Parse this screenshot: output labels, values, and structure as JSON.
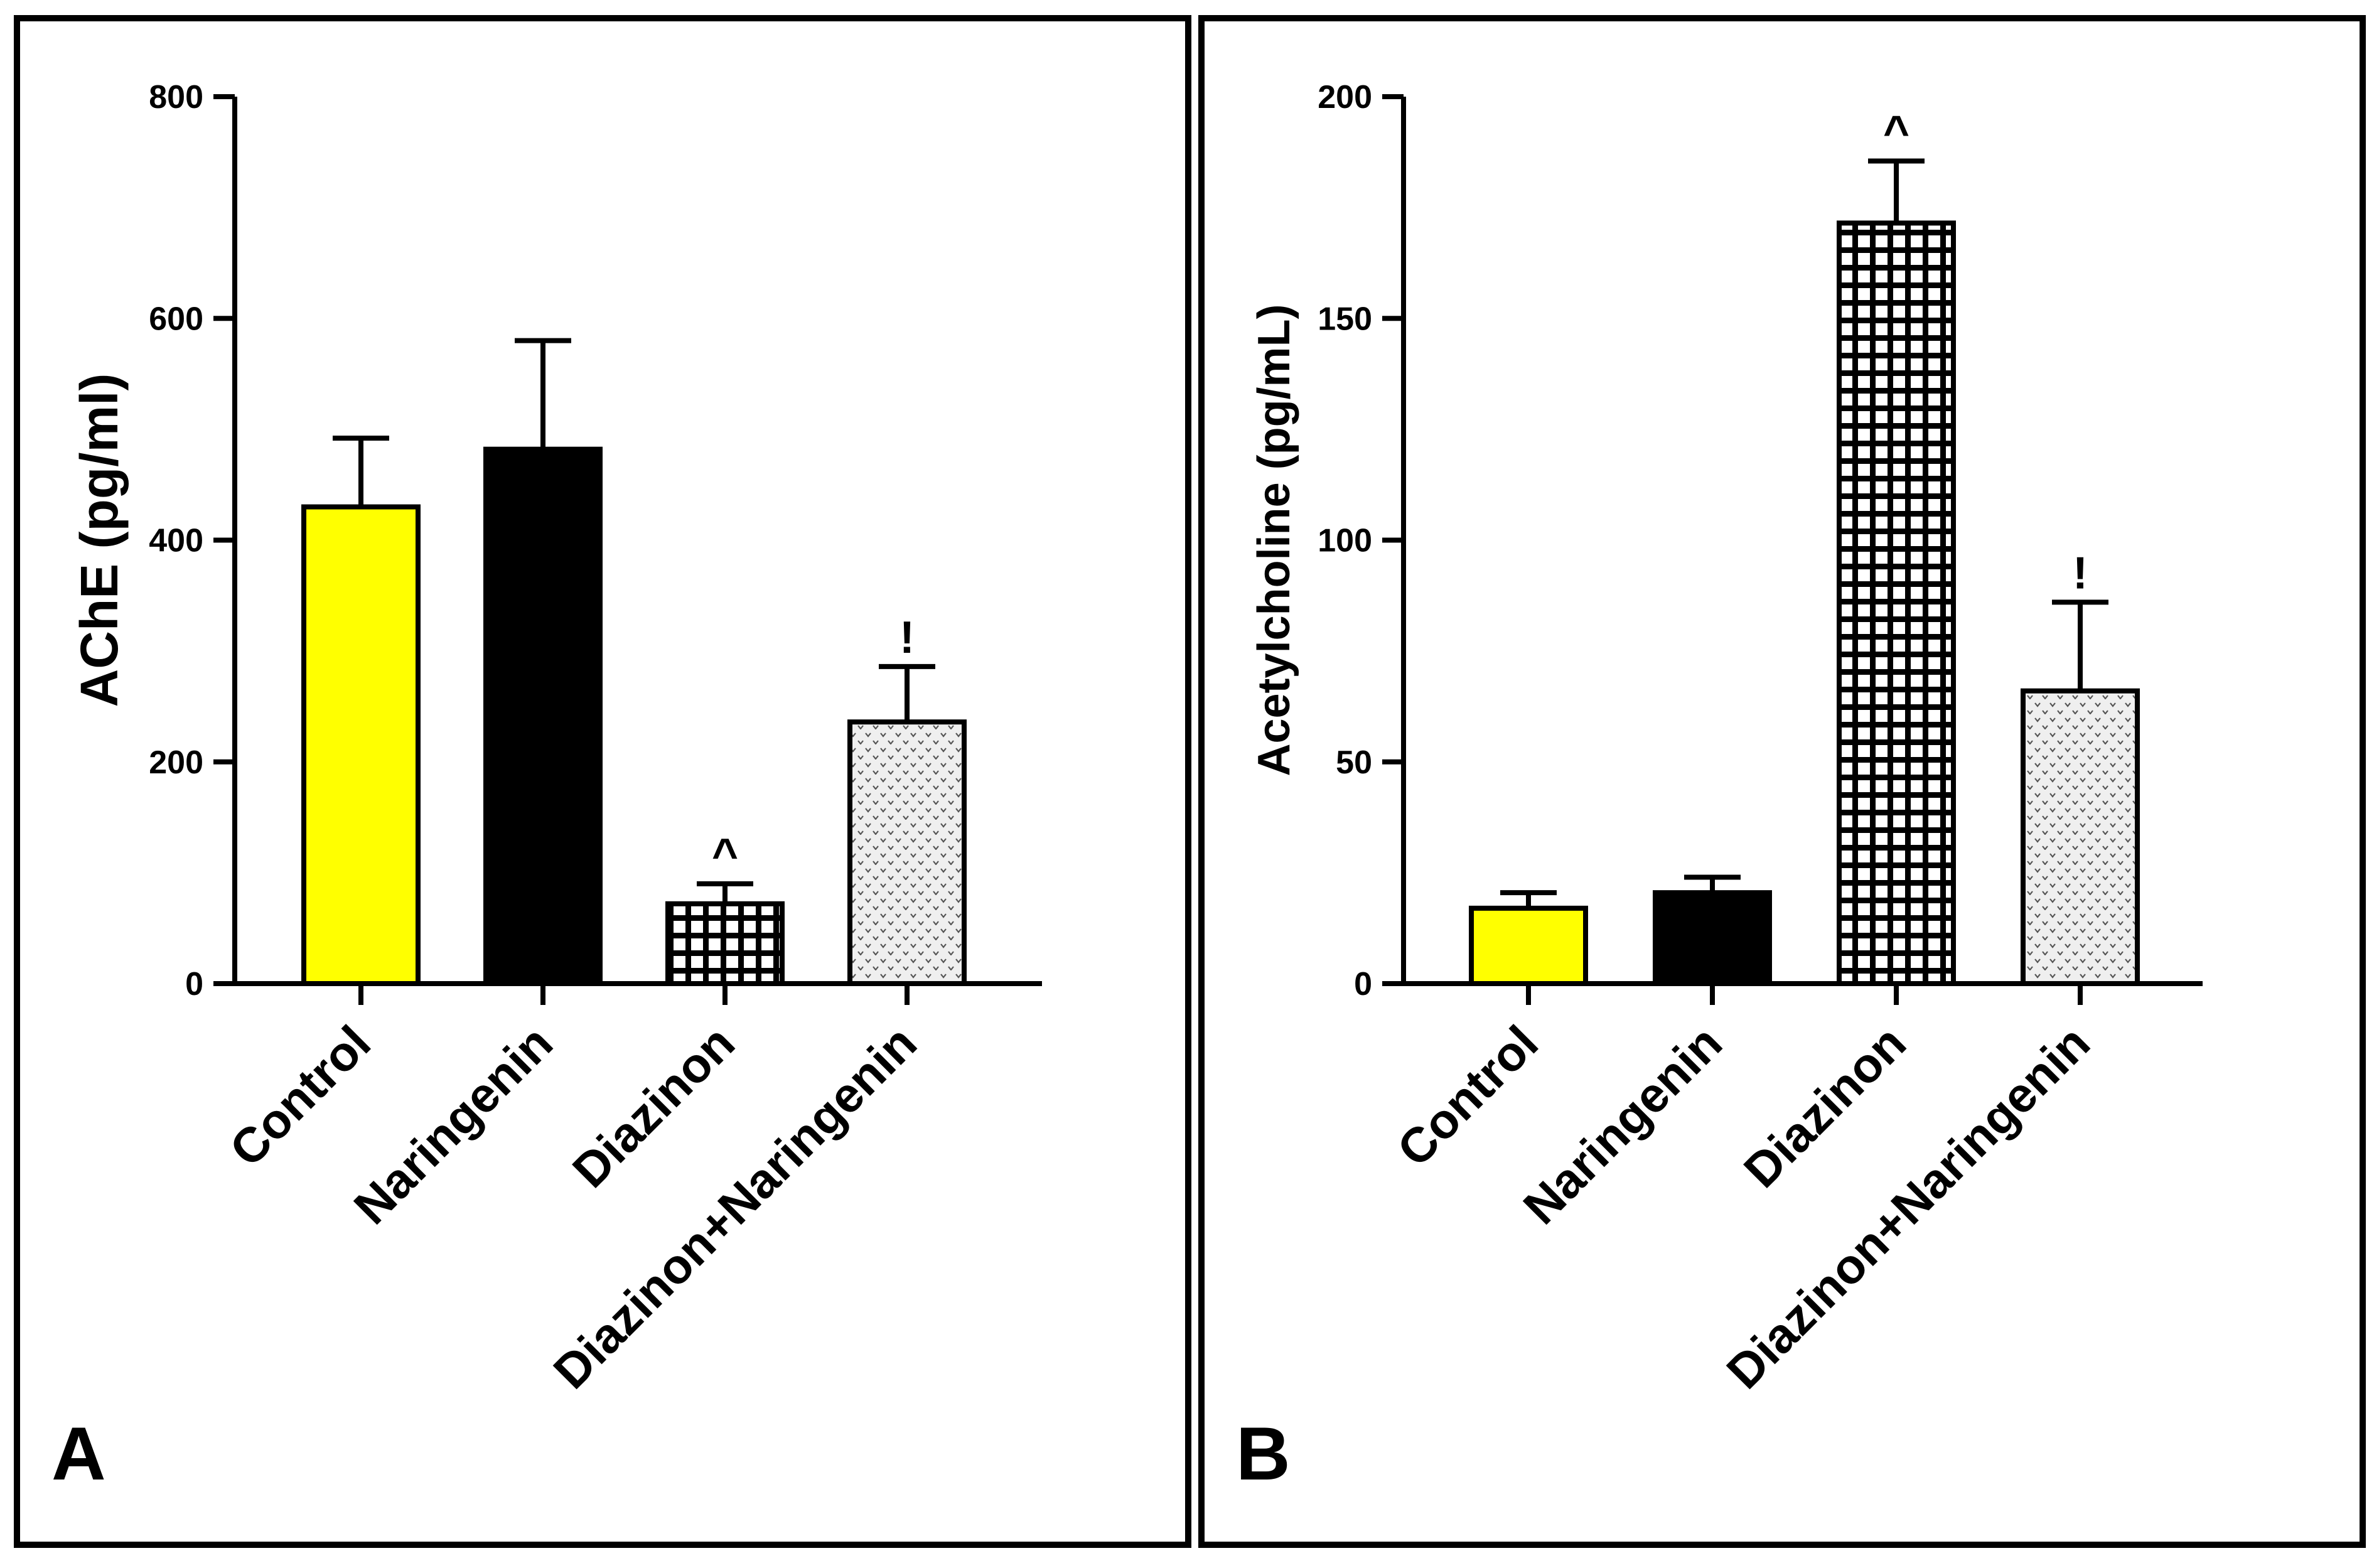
{
  "chart_data": [
    {
      "panel_label": "A",
      "type": "bar",
      "title": "",
      "xlabel": "",
      "ylabel": "AChE (pg/ml)",
      "ylim": [
        0,
        800
      ],
      "yticks": [
        0,
        200,
        400,
        600,
        800
      ],
      "ytick_labels": [
        "0",
        "200",
        "400",
        "600",
        "800"
      ],
      "grid": false,
      "categories": [
        "Control",
        "Naringenin",
        "Diazinon",
        "Diazinon+Naringenin"
      ],
      "values": [
        430,
        482,
        72,
        236
      ],
      "errors": [
        62,
        98,
        18,
        50
      ],
      "annotations": [
        "",
        "",
        "^",
        "!"
      ],
      "fills": [
        "solid-yellow",
        "solid-black",
        "grid",
        "chevron-dots"
      ],
      "colors": {
        "yellow": "#ffff00",
        "black": "#000000",
        "outline": "#000000"
      }
    },
    {
      "panel_label": "B",
      "type": "bar",
      "title": "",
      "xlabel": "",
      "ylabel": "Acetylcholine (pg/mL)",
      "ylim": [
        0,
        200
      ],
      "yticks": [
        0,
        50,
        100,
        150,
        200
      ],
      "ytick_labels": [
        "0",
        "50",
        "100",
        "150",
        "200"
      ],
      "grid": false,
      "categories": [
        "Control",
        "Naringenin",
        "Diazinon",
        "Diazinon+Naringenin"
      ],
      "values": [
        17,
        20.5,
        171.5,
        66
      ],
      "errors": [
        3.5,
        3.5,
        14,
        20
      ],
      "annotations": [
        "",
        "",
        "^",
        "!"
      ],
      "fills": [
        "solid-yellow",
        "solid-black",
        "grid",
        "chevron-dots"
      ],
      "colors": {
        "yellow": "#ffff00",
        "black": "#000000",
        "outline": "#000000"
      }
    }
  ]
}
